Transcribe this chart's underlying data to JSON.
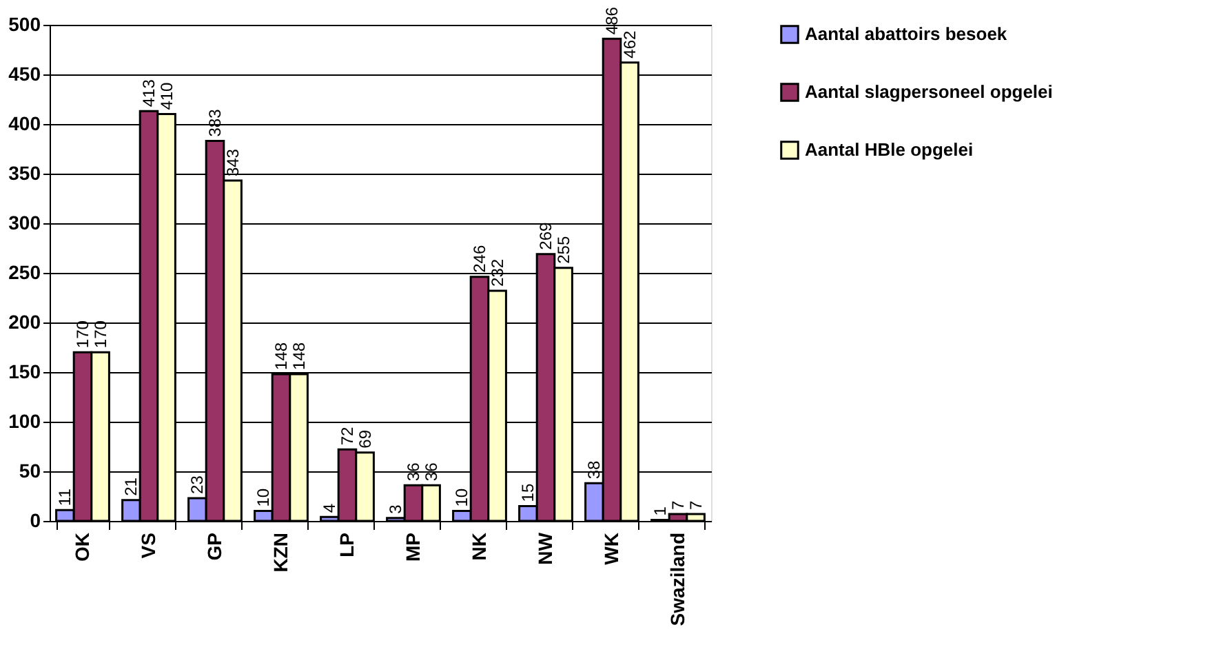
{
  "chart_data": {
    "type": "bar",
    "categories": [
      "OK",
      "VS",
      "GP",
      "KZN",
      "LP",
      "MP",
      "NK",
      "NW",
      "WK",
      "Swaziland"
    ],
    "series": [
      {
        "name": "Aantal abattoirs besoek",
        "color": "#9999ff",
        "values": [
          11,
          21,
          23,
          10,
          4,
          3,
          10,
          15,
          38,
          1
        ]
      },
      {
        "name": "Aantal slagpersoneel opgelei",
        "color": "#993366",
        "values": [
          170,
          413,
          383,
          148,
          72,
          36,
          246,
          269,
          486,
          7
        ]
      },
      {
        "name": "Aantal HBle opgelei",
        "color": "#ffffcc",
        "values": [
          170,
          410,
          343,
          148,
          69,
          36,
          232,
          255,
          462,
          7
        ]
      }
    ],
    "ylim": [
      0,
      500
    ],
    "yticks": [
      0,
      50,
      100,
      150,
      200,
      250,
      300,
      350,
      400,
      450,
      500
    ],
    "grid": "y",
    "legend": "right",
    "data_labels": true
  }
}
